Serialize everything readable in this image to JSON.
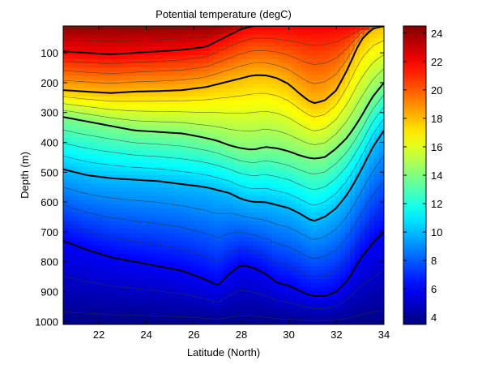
{
  "chart_data": {
    "type": "heatmap",
    "title": "Potential temperature (degC)",
    "xlabel": "Latitude (North)",
    "ylabel": "Depth (m)",
    "xlim": [
      20.5,
      34
    ],
    "ylim": [
      1010,
      10
    ],
    "y_reversed": true,
    "x_ticks": [
      22,
      24,
      26,
      28,
      30,
      32,
      34
    ],
    "y_ticks": [
      100,
      200,
      300,
      400,
      500,
      600,
      700,
      800,
      900,
      1000
    ],
    "colorbar": {
      "colormap": "jet",
      "range": [
        3.5,
        24.5
      ],
      "ticks": [
        4,
        6,
        8,
        10,
        12,
        14,
        16,
        18,
        20,
        22,
        24
      ]
    },
    "contour_interval_degC": 1,
    "bold_contour_levels": [
      6,
      10,
      14,
      18,
      22
    ],
    "latitudes": [
      20.5,
      21.5,
      22.5,
      23.5,
      24.5,
      25.5,
      26.5,
      27,
      27.5,
      28,
      28.5,
      29,
      29.5,
      30,
      30.5,
      31,
      31.5,
      32,
      32.5,
      33,
      33.5,
      34
    ],
    "isotherms": [
      {
        "level": 22,
        "depth": [
          95,
          100,
          105,
          100,
          95,
          90,
          80,
          60,
          40,
          20,
          10,
          10,
          10,
          10,
          10,
          10,
          10,
          10,
          10,
          10,
          10,
          10
        ]
      },
      {
        "level": 18,
        "depth": [
          225,
          230,
          235,
          230,
          228,
          225,
          215,
          205,
          195,
          185,
          175,
          175,
          185,
          205,
          240,
          270,
          260,
          225,
          150,
          60,
          20,
          10
        ]
      },
      {
        "level": 14,
        "depth": [
          315,
          330,
          345,
          360,
          365,
          370,
          385,
          395,
          410,
          420,
          425,
          415,
          420,
          430,
          445,
          455,
          450,
          420,
          380,
          320,
          250,
          200
        ]
      },
      {
        "level": 10,
        "depth": [
          490,
          510,
          520,
          525,
          530,
          540,
          550,
          560,
          570,
          590,
          600,
          600,
          610,
          620,
          640,
          665,
          650,
          620,
          570,
          500,
          420,
          360
        ]
      },
      {
        "level": 6,
        "depth": [
          730,
          760,
          785,
          800,
          815,
          830,
          860,
          880,
          840,
          810,
          820,
          840,
          870,
          880,
          900,
          915,
          915,
          900,
          860,
          790,
          740,
          700
        ]
      }
    ]
  }
}
